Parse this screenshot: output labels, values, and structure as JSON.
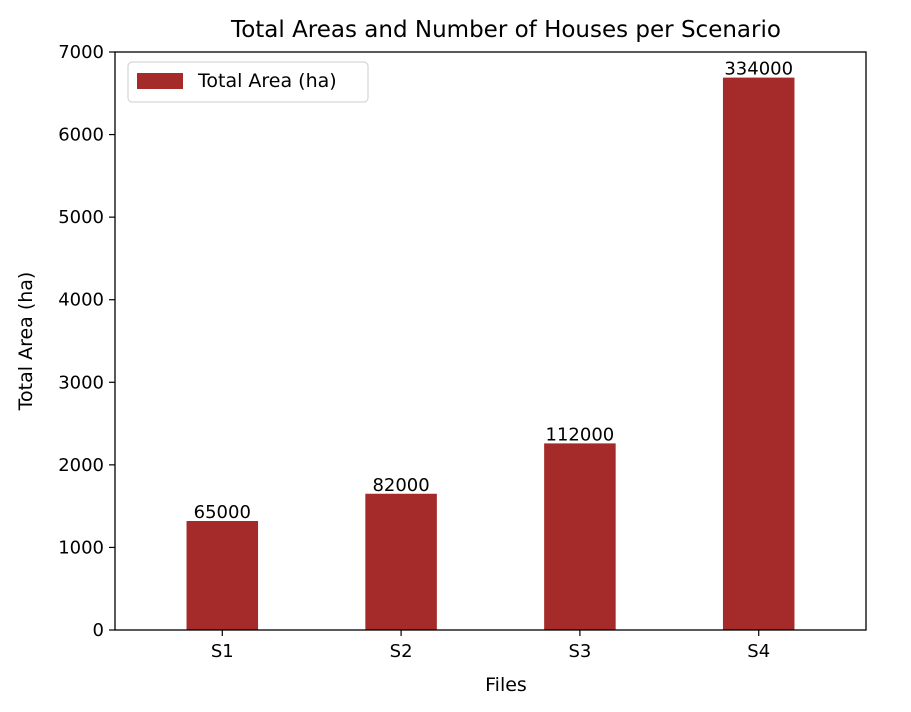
{
  "chart_data": {
    "type": "bar",
    "title": "Total Areas and Number of Houses per Scenario",
    "xlabel": "Files",
    "ylabel": "Total Area (ha)",
    "categories": [
      "S1",
      "S2",
      "S3",
      "S4"
    ],
    "series": [
      {
        "name": "Total Area (ha)",
        "values": [
          1320,
          1650,
          2260,
          6690
        ],
        "color": "#a52a2a"
      }
    ],
    "bar_labels": [
      "65000",
      "82000",
      "112000",
      "334000"
    ],
    "ylim": [
      0,
      7000
    ],
    "yticks": [
      0,
      1000,
      2000,
      3000,
      4000,
      5000,
      6000,
      7000
    ],
    "grid": false,
    "legend_position": "top-left"
  }
}
